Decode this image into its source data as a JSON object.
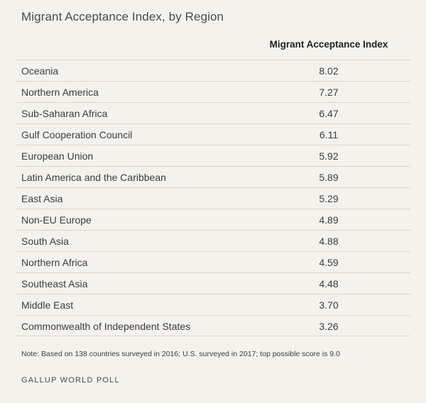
{
  "title": "Migrant Acceptance Index, by Region",
  "column_header": "Migrant Acceptance Index",
  "chart_data": {
    "type": "table",
    "title": "Migrant Acceptance Index, by Region",
    "columns": [
      "",
      "Migrant Acceptance Index"
    ],
    "rows": [
      {
        "region": "Oceania",
        "value": "8.02"
      },
      {
        "region": "Northern America",
        "value": "7.27"
      },
      {
        "region": "Sub-Saharan Africa",
        "value": "6.47"
      },
      {
        "region": "Gulf Cooperation Council",
        "value": "6.11"
      },
      {
        "region": "European Union",
        "value": "5.92"
      },
      {
        "region": "Latin America and the Caribbean",
        "value": "5.89"
      },
      {
        "region": "East Asia",
        "value": "5.29"
      },
      {
        "region": "Non-EU Europe",
        "value": "4.89"
      },
      {
        "region": "South Asia",
        "value": "4.88"
      },
      {
        "region": "Northern Africa",
        "value": "4.59"
      },
      {
        "region": "Southeast Asia",
        "value": "4.48"
      },
      {
        "region": "Middle East",
        "value": "3.70"
      },
      {
        "region": "Commonwealth of Independent States",
        "value": "3.26"
      }
    ]
  },
  "note": "Note: Based on 138 countries surveyed in 2016; U.S. surveyed in 2017; top possible score is 9.0",
  "source": "GALLUP WORLD POLL"
}
